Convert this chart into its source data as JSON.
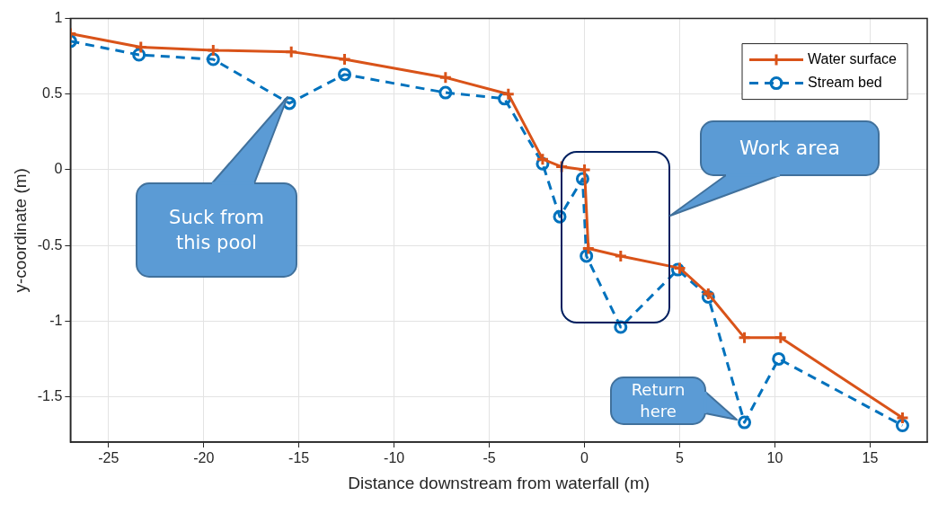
{
  "chart_data": {
    "type": "line",
    "xlabel": "Distance downstream from waterfall (m)",
    "ylabel": "y-coordinate (m)",
    "xlim": [
      -27,
      18
    ],
    "xticks": [
      -25,
      -20,
      -15,
      -10,
      -5,
      0,
      5,
      10,
      15
    ],
    "ylim": [
      -1.8,
      1
    ],
    "yticks": [
      -1.5,
      -1,
      -0.5,
      0,
      0.5,
      1
    ],
    "grid": true,
    "legend": "top right",
    "series": [
      {
        "name": "Water surface",
        "color": "#d95319",
        "marker": "cross",
        "line_style": "solid",
        "x": [
          -27,
          -23.3,
          -19.5,
          -15.4,
          -12.6,
          -7.3,
          -4.0,
          -2.2,
          -1.2,
          0,
          0.2,
          1.9,
          5.0,
          6.5,
          8.4,
          10.3,
          16.7
        ],
        "values": [
          0.9,
          0.81,
          0.79,
          0.78,
          0.73,
          0.61,
          0.5,
          0.07,
          0.02,
          0,
          -0.52,
          -0.57,
          -0.65,
          -0.82,
          -1.11,
          -1.11,
          -1.64
        ]
      },
      {
        "name": "Stream bed",
        "color": "#0072bd",
        "marker": "circle",
        "line_style": "dashed",
        "x": [
          -27,
          -23.4,
          -19.5,
          -15.5,
          -12.6,
          -7.3,
          -4.2,
          -2.2,
          -1.3,
          -0.1,
          0.1,
          1.9,
          4.9,
          6.5,
          8.4,
          10.2,
          16.7
        ],
        "values": [
          0.85,
          0.76,
          0.73,
          0.44,
          0.63,
          0.51,
          0.47,
          0.04,
          -0.31,
          -0.06,
          -0.57,
          -1.04,
          -0.66,
          -0.84,
          -1.67,
          -1.25,
          -1.69
        ]
      }
    ],
    "annotations": [
      "Suck from this pool",
      "Work area",
      "Return here"
    ]
  }
}
